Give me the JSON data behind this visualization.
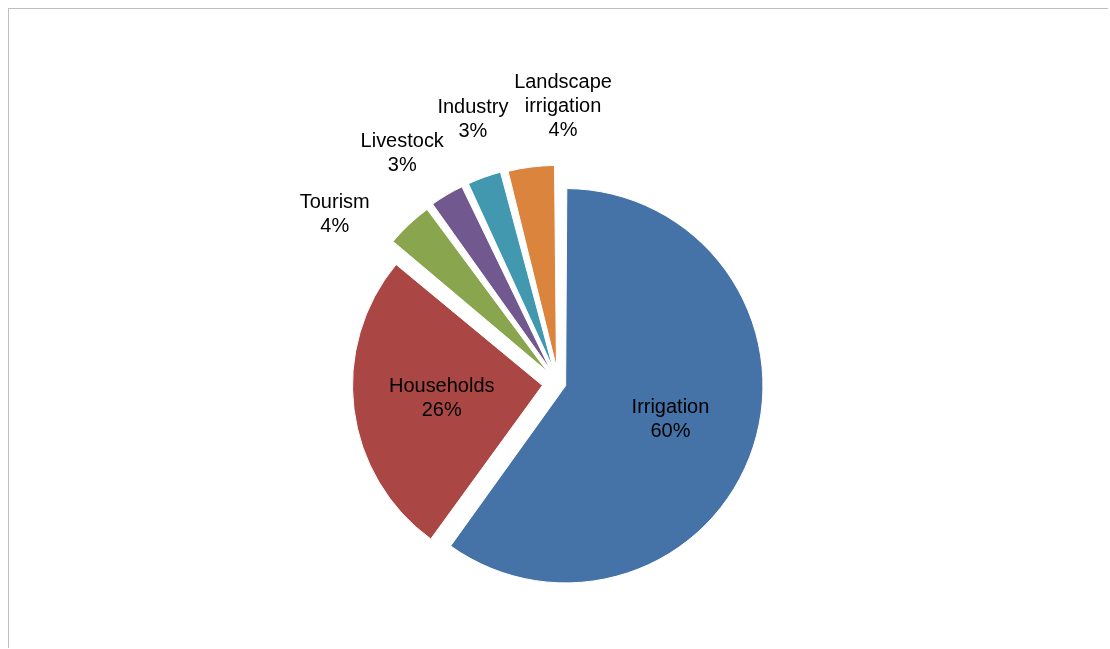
{
  "chart_data": {
    "type": "pie",
    "categories": [
      "Irrigation",
      "Households",
      "Tourism",
      "Livestock",
      "Industry",
      "Landscape irrigation"
    ],
    "values": [
      60,
      26,
      4,
      3,
      3,
      4
    ],
    "colors": [
      "#4572a7",
      "#aa4643",
      "#89a54e",
      "#71588f",
      "#4198af",
      "#db843d"
    ],
    "value_labels": [
      "60%",
      "26%",
      "4%",
      "3%",
      "3%",
      "4%"
    ]
  }
}
